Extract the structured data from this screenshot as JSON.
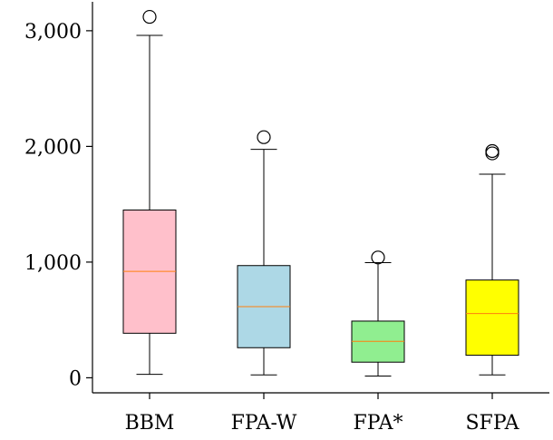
{
  "chart_data": {
    "type": "box",
    "title": "",
    "xlabel": "",
    "ylabel": "",
    "ylim": [
      -130,
      3250
    ],
    "yticks": [
      0,
      1000,
      2000,
      3000
    ],
    "ytick_labels": [
      "0",
      "1,000",
      "2,000",
      "3,000"
    ],
    "grid": false,
    "categories": [
      "BBM",
      "FPA-W",
      "FPA*",
      "SFPA"
    ],
    "boxes": [
      {
        "name": "BBM",
        "color": "#ffc0cb",
        "whisker_low": 30,
        "q1": 385,
        "median": 920,
        "q3": 1450,
        "whisker_high": 2960,
        "outliers": [
          3120
        ]
      },
      {
        "name": "FPA-W",
        "color": "#add8e6",
        "whisker_low": 25,
        "q1": 260,
        "median": 615,
        "q3": 970,
        "whisker_high": 1975,
        "outliers": [
          2080
        ]
      },
      {
        "name": "FPA*",
        "color": "#90ee90",
        "whisker_low": 15,
        "q1": 135,
        "median": 315,
        "q3": 490,
        "whisker_high": 995,
        "outliers": [
          1040
        ]
      },
      {
        "name": "SFPA",
        "color": "#ffff00",
        "whisker_low": 25,
        "q1": 195,
        "median": 555,
        "q3": 845,
        "whisker_high": 1760,
        "outliers": [
          1940,
          1960
        ]
      }
    ],
    "median_color": "#ff7f0e"
  }
}
